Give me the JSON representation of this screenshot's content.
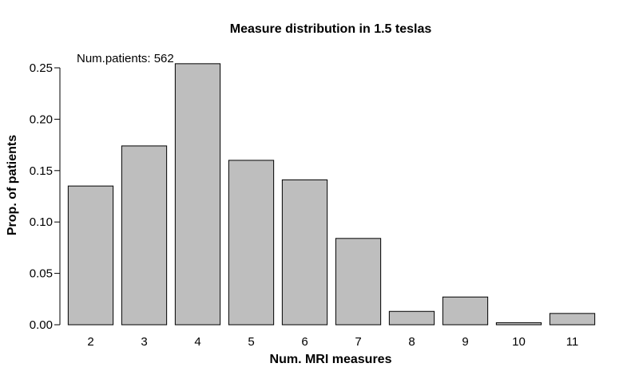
{
  "chart_data": {
    "type": "bar",
    "title": "Measure distribution in  1.5  teslas",
    "xlabel": "Num. MRI measures",
    "ylabel": "Prop. of patients",
    "annotation": "Num.patients: 562",
    "categories": [
      "2",
      "3",
      "4",
      "5",
      "6",
      "7",
      "8",
      "9",
      "10",
      "11"
    ],
    "values": [
      0.135,
      0.174,
      0.254,
      0.16,
      0.141,
      0.084,
      0.013,
      0.027,
      0.002,
      0.011
    ],
    "ylim": [
      0,
      0.25
    ],
    "yticks": [
      "0.00",
      "0.05",
      "0.10",
      "0.15",
      "0.20",
      "0.25"
    ],
    "bar_color": "#bebebe",
    "grid": false
  }
}
